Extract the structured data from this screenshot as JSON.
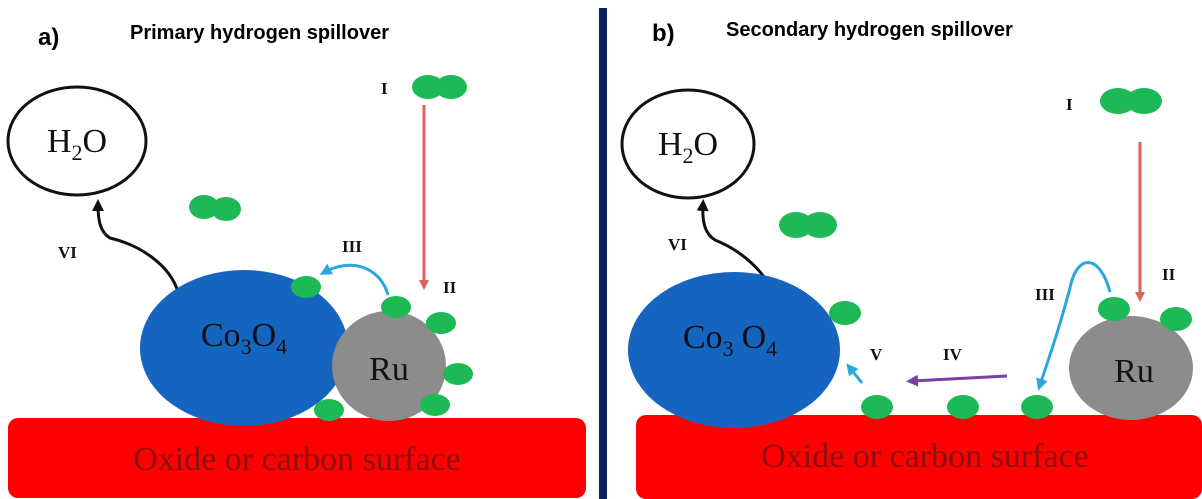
{
  "panel_a": {
    "letter": "a)",
    "title": "Primary hydrogen spillover",
    "water": {
      "base": "H",
      "sub": "2",
      "tail": "O"
    },
    "oxide": {
      "p1": "Co",
      "s1": "3",
      "p2": "O",
      "s2": "4"
    },
    "metal": "Ru",
    "surface": "Oxide or carbon surface",
    "steps": [
      "I",
      "II",
      "III",
      "VI"
    ]
  },
  "panel_b": {
    "letter": "b)",
    "title": "Secondary hydrogen spillover",
    "water": {
      "base": "H",
      "sub": "2",
      "tail": "O"
    },
    "oxide": {
      "p1": "Co",
      "s1": "3",
      "p2": "O",
      "s2": "4"
    },
    "metal": "Ru",
    "surface": "Oxide or carbon surface",
    "steps": [
      "I",
      "II",
      "III",
      "IV",
      "V",
      "VI"
    ]
  },
  "colors": {
    "surface": "#ff0000",
    "surface_text": "#8a1010",
    "oxide": "#1565c0",
    "metal": "#8c8c8c",
    "hydrogen": "#1db954",
    "divider": "#0b1f5c",
    "arrow_adsorption": "#e0605a",
    "arrow_spillover": "#29a8e0",
    "arrow_migration": "#7b3fa8",
    "arrow_desorption": "#111111"
  }
}
